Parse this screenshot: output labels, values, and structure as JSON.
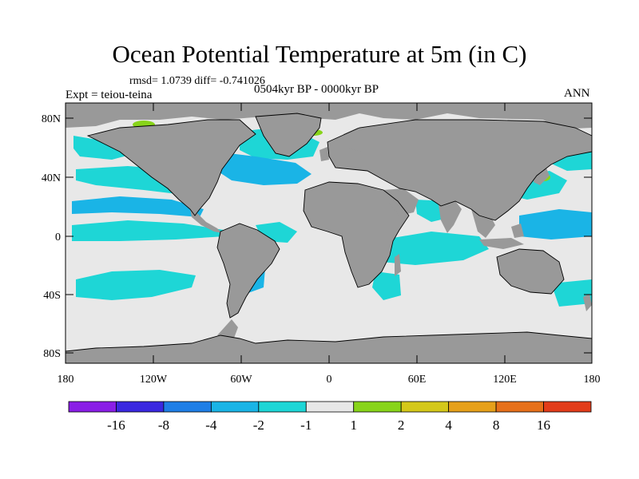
{
  "title": "Ocean Potential Temperature at 5m (in C)",
  "stats": "rmsd= 1.0739 diff= -0.741026",
  "experiment": "Expt = teiou-teina",
  "period": "0504kyr BP - 0000kyr BP",
  "season": "ANN",
  "lat_labels": [
    "80N",
    "40N",
    "0",
    "40S",
    "80S"
  ],
  "lon_labels": [
    "180",
    "120W",
    "60W",
    "0",
    "60E",
    "120E",
    "180"
  ],
  "colorbar": {
    "labels": [
      "-16",
      "-8",
      "-4",
      "-2",
      "-1",
      "1",
      "2",
      "4",
      "8",
      "16"
    ],
    "colors": [
      "#8a1ee6",
      "#3a28e0",
      "#1f7ee6",
      "#1ab4e6",
      "#1ed6d6",
      "#e8e8e8",
      "#88d41a",
      "#d4c81a",
      "#e6a01a",
      "#e6701a",
      "#e23c1a"
    ]
  },
  "palette": {
    "land": "#999999",
    "ocean_neutral": "#e8e8e8",
    "ocean_cool": "#1ed6d6",
    "ocean_cooler": "#1ab4e6",
    "ocean_coolest": "#1f7ee6",
    "ocean_warm": "#88d41a",
    "coast": "#000000"
  }
}
